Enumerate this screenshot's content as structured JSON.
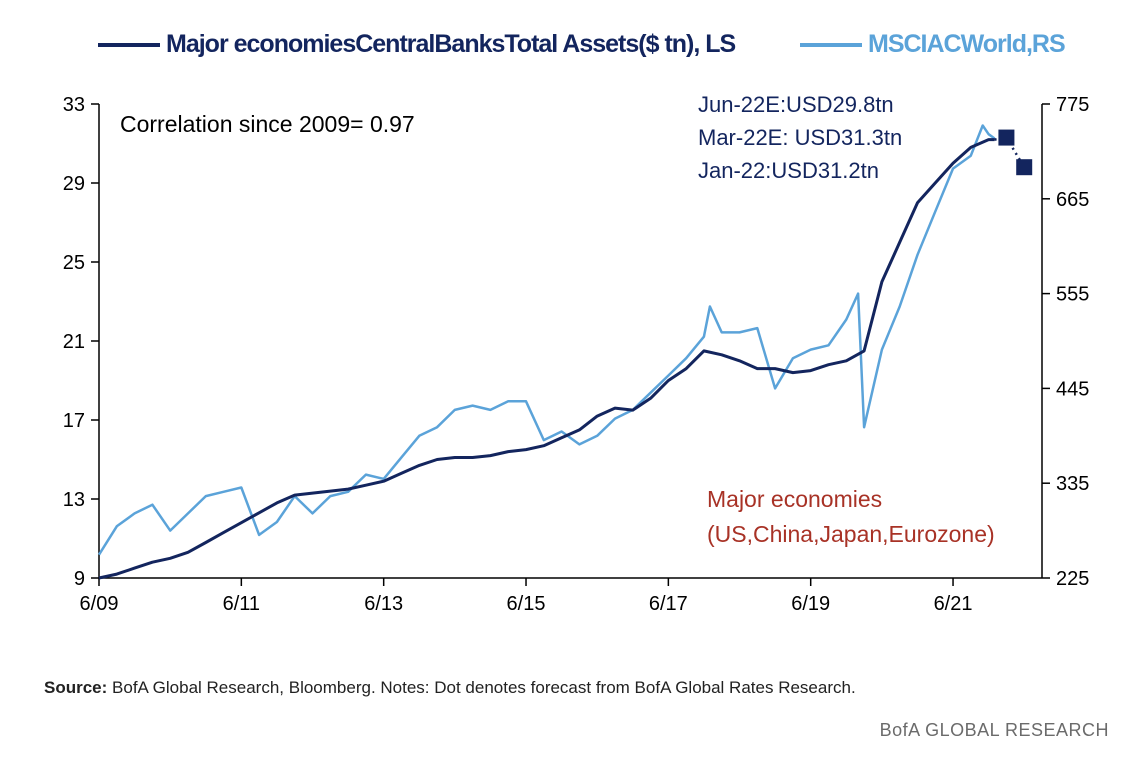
{
  "chart_data": {
    "type": "line",
    "series": [
      {
        "name": "Major economiesCentralBanksTotal Assets($ tn), LS",
        "axis": "left",
        "color": "#13255e",
        "points": [
          [
            "2009-06",
            9.0
          ],
          [
            "2009-09",
            9.2
          ],
          [
            "2009-12",
            9.5
          ],
          [
            "2010-03",
            9.8
          ],
          [
            "2010-06",
            10.0
          ],
          [
            "2010-09",
            10.3
          ],
          [
            "2010-12",
            10.8
          ],
          [
            "2011-03",
            11.3
          ],
          [
            "2011-06",
            11.8
          ],
          [
            "2011-09",
            12.3
          ],
          [
            "2011-12",
            12.8
          ],
          [
            "2012-03",
            13.2
          ],
          [
            "2012-06",
            13.3
          ],
          [
            "2012-09",
            13.4
          ],
          [
            "2012-12",
            13.5
          ],
          [
            "2013-03",
            13.7
          ],
          [
            "2013-06",
            13.9
          ],
          [
            "2013-09",
            14.3
          ],
          [
            "2013-12",
            14.7
          ],
          [
            "2014-03",
            15.0
          ],
          [
            "2014-06",
            15.1
          ],
          [
            "2014-09",
            15.1
          ],
          [
            "2014-12",
            15.2
          ],
          [
            "2015-03",
            15.4
          ],
          [
            "2015-06",
            15.5
          ],
          [
            "2015-09",
            15.7
          ],
          [
            "2015-12",
            16.1
          ],
          [
            "2016-03",
            16.5
          ],
          [
            "2016-06",
            17.2
          ],
          [
            "2016-09",
            17.6
          ],
          [
            "2016-12",
            17.5
          ],
          [
            "2017-03",
            18.1
          ],
          [
            "2017-06",
            19.0
          ],
          [
            "2017-09",
            19.6
          ],
          [
            "2017-12",
            20.5
          ],
          [
            "2018-03",
            20.3
          ],
          [
            "2018-06",
            20.0
          ],
          [
            "2018-09",
            19.6
          ],
          [
            "2018-12",
            19.6
          ],
          [
            "2019-03",
            19.4
          ],
          [
            "2019-06",
            19.5
          ],
          [
            "2019-09",
            19.8
          ],
          [
            "2019-12",
            20.0
          ],
          [
            "2020-03",
            20.5
          ],
          [
            "2020-06",
            24.0
          ],
          [
            "2020-09",
            26.0
          ],
          [
            "2020-12",
            28.0
          ],
          [
            "2021-03",
            29.0
          ],
          [
            "2021-06",
            30.0
          ],
          [
            "2021-09",
            30.8
          ],
          [
            "2021-12",
            31.2
          ],
          [
            "2022-01",
            31.2
          ]
        ]
      },
      {
        "name": "MSCIACWorld,RS",
        "axis": "right",
        "color": "#5ba3d9",
        "points": [
          [
            "2009-06",
            252
          ],
          [
            "2009-09",
            285
          ],
          [
            "2009-12",
            300
          ],
          [
            "2010-03",
            310
          ],
          [
            "2010-06",
            280
          ],
          [
            "2010-09",
            300
          ],
          [
            "2010-12",
            320
          ],
          [
            "2011-03",
            325
          ],
          [
            "2011-06",
            330
          ],
          [
            "2011-09",
            275
          ],
          [
            "2011-12",
            290
          ],
          [
            "2012-03",
            320
          ],
          [
            "2012-06",
            300
          ],
          [
            "2012-09",
            320
          ],
          [
            "2012-12",
            325
          ],
          [
            "2013-03",
            345
          ],
          [
            "2013-06",
            340
          ],
          [
            "2013-09",
            365
          ],
          [
            "2013-12",
            390
          ],
          [
            "2014-03",
            400
          ],
          [
            "2014-06",
            420
          ],
          [
            "2014-09",
            425
          ],
          [
            "2014-12",
            420
          ],
          [
            "2015-03",
            430
          ],
          [
            "2015-06",
            430
          ],
          [
            "2015-09",
            385
          ],
          [
            "2015-12",
            395
          ],
          [
            "2016-03",
            380
          ],
          [
            "2016-06",
            390
          ],
          [
            "2016-09",
            410
          ],
          [
            "2016-12",
            420
          ],
          [
            "2017-03",
            440
          ],
          [
            "2017-06",
            460
          ],
          [
            "2017-09",
            480
          ],
          [
            "2017-12",
            505
          ],
          [
            "2018-01",
            540
          ],
          [
            "2018-03",
            510
          ],
          [
            "2018-06",
            510
          ],
          [
            "2018-09",
            515
          ],
          [
            "2018-12",
            445
          ],
          [
            "2019-03",
            480
          ],
          [
            "2019-06",
            490
          ],
          [
            "2019-09",
            495
          ],
          [
            "2019-12",
            525
          ],
          [
            "2020-02",
            555
          ],
          [
            "2020-03",
            400
          ],
          [
            "2020-06",
            490
          ],
          [
            "2020-09",
            540
          ],
          [
            "2020-12",
            600
          ],
          [
            "2021-03",
            650
          ],
          [
            "2021-06",
            700
          ],
          [
            "2021-09",
            715
          ],
          [
            "2021-11",
            750
          ],
          [
            "2021-12",
            740
          ],
          [
            "2022-01",
            735
          ]
        ]
      }
    ],
    "forecast_points": [
      {
        "x": "2022-03",
        "value": 31.3,
        "axis": "left"
      },
      {
        "x": "2022-06",
        "value": 29.8,
        "axis": "left"
      }
    ],
    "x_ticks": [
      "6/09",
      "6/11",
      "6/13",
      "6/15",
      "6/17",
      "6/19",
      "6/21"
    ],
    "x_range": [
      "2009-06",
      "2022-09"
    ],
    "y_left": {
      "ticks": [
        9,
        13,
        17,
        21,
        25,
        29,
        33
      ],
      "range": [
        9,
        33
      ]
    },
    "y_right": {
      "ticks": [
        225,
        335,
        445,
        555,
        665,
        775
      ],
      "range": [
        225,
        775
      ]
    },
    "grid": false,
    "legend_position": "top",
    "annotations": {
      "correlation": "Correlation since 2009= 0.97",
      "forecast_lines": [
        "Jun-22E:USD29.8tn",
        "Mar-22E: USD31.3tn",
        "Jan-22:USD31.2tn"
      ],
      "economies_lines": [
        "Major economies",
        "(US,China,Japan,Eurozone)"
      ]
    }
  },
  "colors": {
    "cb_line": "#13255e",
    "msci_line": "#5ba3d9",
    "annotation_blue": "#13255e",
    "annotation_red": "#a83226"
  },
  "footer": {
    "source_label": "Source:",
    "source_text": " BofA Global Research, Bloomberg. Notes: Dot denotes forecast from BofA Global Rates Research.",
    "brand": "BofA GLOBAL RESEARCH"
  }
}
